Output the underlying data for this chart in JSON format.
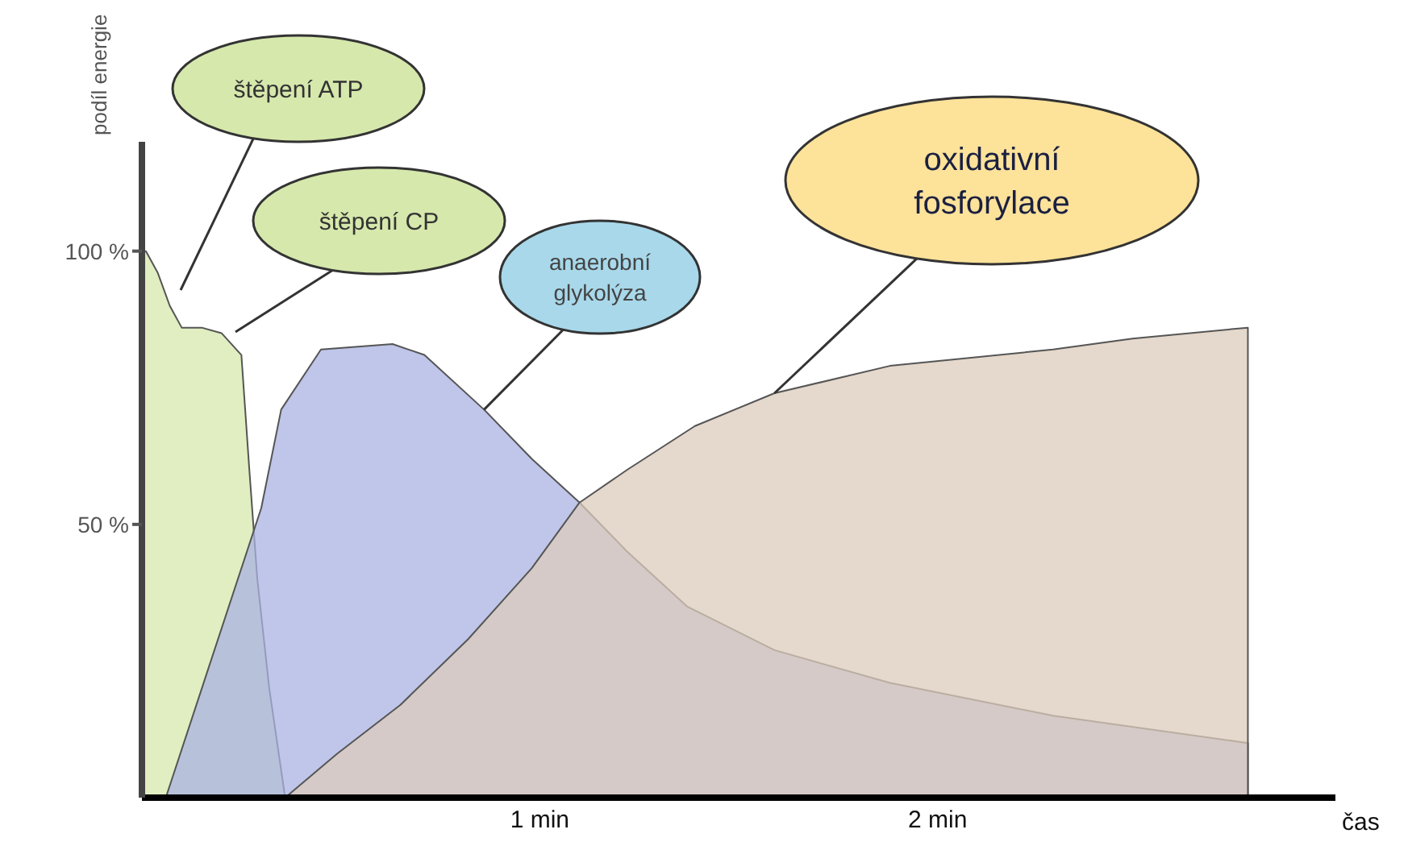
{
  "chart_data": {
    "type": "area",
    "xlabel": "čas",
    "ylabel": "podíl energie",
    "xlim": [
      0,
      3.0
    ],
    "xticks": [
      {
        "value": 1,
        "label": "1 min"
      },
      {
        "value": 2,
        "label": "2 min"
      }
    ],
    "ylim": [
      0,
      120
    ],
    "yticks": [
      {
        "value": 50,
        "label": "50 %"
      },
      {
        "value": 100,
        "label": "100 %"
      }
    ],
    "series": [
      {
        "color": "#d6e8ac",
        "x": [
          0,
          0.01,
          0.04,
          0.07,
          0.1,
          0.15,
          0.2,
          0.25,
          0.27,
          0.29,
          0.32,
          0.36
        ],
        "values": [
          100,
          100,
          96,
          90,
          86,
          86,
          85,
          81,
          60,
          40,
          20,
          0
        ]
      },
      {
        "color": "#a9b3e2",
        "x": [
          0.06,
          0.3,
          0.35,
          0.45,
          0.63,
          0.71,
          0.86,
          0.98,
          1.1,
          1.22,
          1.37,
          1.59,
          1.88,
          2.29,
          2.78,
          2.78
        ],
        "values": [
          0,
          53,
          71,
          82,
          83,
          81,
          71,
          62,
          54,
          45,
          35,
          27,
          21,
          15,
          10,
          0
        ]
      },
      {
        "color": "#dccbbb",
        "x": [
          0.36,
          0.49,
          0.65,
          0.82,
          0.98,
          1.1,
          1.22,
          1.39,
          1.59,
          1.88,
          2.29,
          2.49,
          2.78,
          2.78
        ],
        "values": [
          0,
          8,
          17,
          29,
          42,
          54,
          60,
          68,
          74,
          79,
          82,
          84,
          86,
          0
        ]
      }
    ],
    "annotations": [
      "štěpení ATP",
      "štěpení CP",
      {
        "text": "anaerobní glykolýza",
        "x": 0.86,
        "y": 71
      },
      {
        "text": "oxidativní fosforylace",
        "x": 1.59,
        "y": 74
      }
    ]
  }
}
